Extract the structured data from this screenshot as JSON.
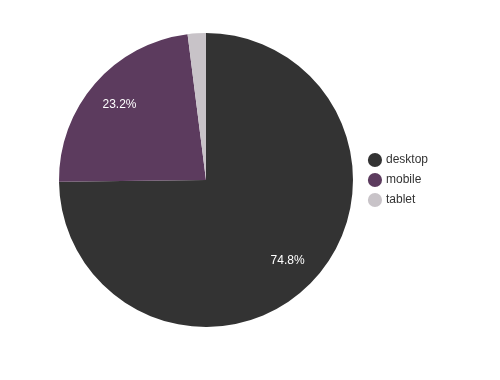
{
  "chart_data": {
    "type": "pie",
    "categories": [
      "desktop",
      "mobile",
      "tablet"
    ],
    "values": [
      74.8,
      23.2,
      2.0
    ],
    "value_labels": [
      "74.8%",
      "23.2%",
      null
    ],
    "colors": [
      "#333333",
      "#5c3b5e",
      "#c8c3c8"
    ],
    "legend": "right",
    "data_labels": true
  }
}
